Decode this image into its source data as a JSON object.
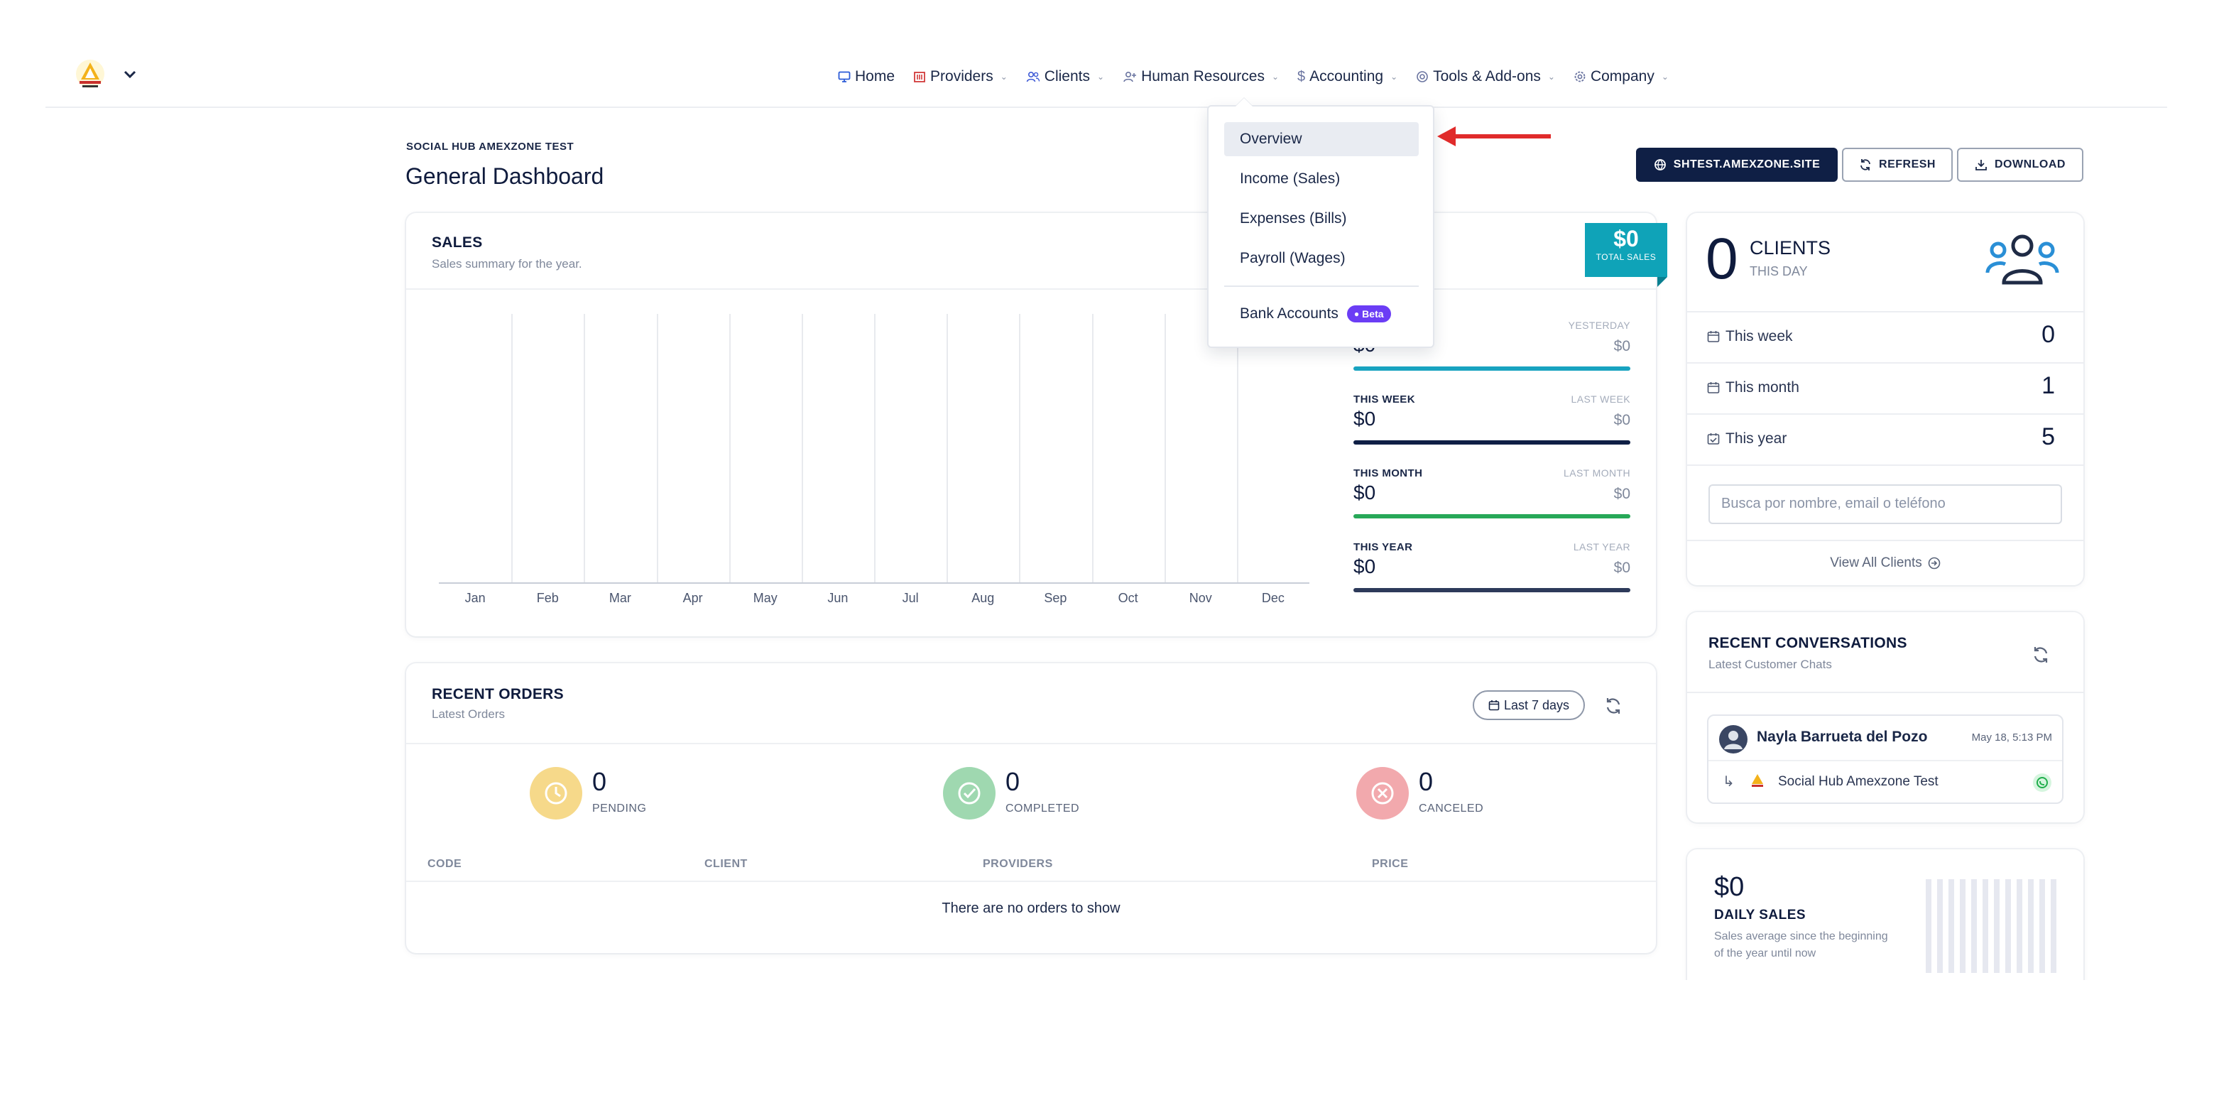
{
  "nav": {
    "items": [
      {
        "label": "Home",
        "icon": "monitor-icon",
        "chevron": false
      },
      {
        "label": "Providers",
        "icon": "building-icon",
        "chevron": true
      },
      {
        "label": "Clients",
        "icon": "users-icon",
        "chevron": true
      },
      {
        "label": "Human Resources",
        "icon": "user-plus-icon",
        "chevron": true
      },
      {
        "label": "Accounting",
        "icon": "dollar-icon",
        "chevron": true
      },
      {
        "label": "Tools & Add-ons",
        "icon": "at-icon",
        "chevron": true
      },
      {
        "label": "Company",
        "icon": "gear-icon",
        "chevron": true
      }
    ]
  },
  "accounting_menu": {
    "items": [
      "Overview",
      "Income (Sales)",
      "Expenses (Bills)",
      "Payroll (Wages)"
    ],
    "bank_accounts": "Bank Accounts",
    "beta_label": "Beta",
    "active": "Overview"
  },
  "header": {
    "org": "SOCIAL HUB AMEXZONE TEST",
    "title": "General Dashboard",
    "site_button": "SHTEST.AMEXZONE.SITE",
    "refresh_button": "REFRESH",
    "download_button": "DOWNLOAD"
  },
  "sales": {
    "title": "SALES",
    "subtitle": "Sales summary for the year.",
    "total_value": "$0",
    "total_label": "TOTAL SALES",
    "stats": [
      {
        "label": "",
        "value": "$0",
        "prev_label": "YESTERDAY",
        "prev": "$0",
        "color": "#18a3c0"
      },
      {
        "label": "THIS WEEK",
        "value": "$0",
        "prev_label": "LAST WEEK",
        "prev": "$0",
        "color": "#0f1f45"
      },
      {
        "label": "THIS MONTH",
        "value": "$0",
        "prev_label": "LAST MONTH",
        "prev": "$0",
        "color": "#27a858"
      },
      {
        "label": "THIS YEAR",
        "value": "$0",
        "prev_label": "LAST YEAR",
        "prev": "$0",
        "color": "#2d3a5a"
      }
    ]
  },
  "chart_data": {
    "type": "bar",
    "categories": [
      "Jan",
      "Feb",
      "Mar",
      "Apr",
      "May",
      "Jun",
      "Jul",
      "Aug",
      "Sep",
      "Oct",
      "Nov",
      "Dec"
    ],
    "values": [
      0,
      0,
      0,
      0,
      0,
      0,
      0,
      0,
      0,
      0,
      0,
      0
    ],
    "title": "",
    "xlabel": "",
    "ylabel": "",
    "grid": true
  },
  "orders": {
    "title": "RECENT ORDERS",
    "subtitle": "Latest Orders",
    "filter": "Last 7 days",
    "stats": [
      {
        "value": "0",
        "label": "PENDING",
        "color": "#f6d98a",
        "icon": "clock-icon"
      },
      {
        "value": "0",
        "label": "COMPLETED",
        "color": "#9fd8b0",
        "icon": "check-circle-icon"
      },
      {
        "value": "0",
        "label": "CANCELED",
        "color": "#f2a9ad",
        "icon": "x-circle-icon"
      }
    ],
    "columns": [
      "CODE",
      "CLIENT",
      "PROVIDERS",
      "PRICE"
    ],
    "empty": "There are no orders to show"
  },
  "clients": {
    "count": "0",
    "label": "CLIENTS",
    "sub": "THIS DAY",
    "rows": [
      {
        "label": "This week",
        "value": "0"
      },
      {
        "label": "This month",
        "value": "1"
      },
      {
        "label": "This year",
        "value": "5"
      }
    ],
    "search_placeholder": "Busca por nombre, email o teléfono",
    "view_all": "View All Clients"
  },
  "conversations": {
    "title": "RECENT CONVERSATIONS",
    "subtitle": "Latest Customer Chats",
    "item": {
      "name": "Nayla Barrueta del Pozo",
      "time": "May 18, 5:13 PM",
      "channel": "Social Hub Amexzone Test"
    }
  },
  "daily": {
    "value": "$0",
    "label": "DAILY SALES",
    "desc_line1": "Sales average since the beginning",
    "desc_line2": "of the year until now"
  }
}
